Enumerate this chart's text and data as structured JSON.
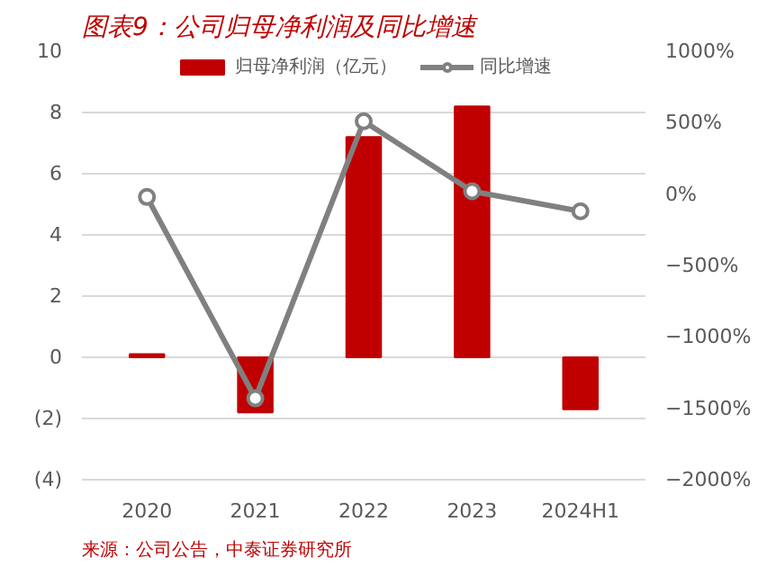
{
  "chart_data": {
    "type": "bar",
    "title": "图表9：公司归母净利润及同比增速",
    "categories": [
      "2020",
      "2021",
      "2022",
      "2023",
      "2024H1"
    ],
    "series": [
      {
        "name": "归母净利润（亿元）",
        "color": "#c00000",
        "values": [
          0.1,
          -1.8,
          7.2,
          8.2,
          -1.7
        ]
      },
      {
        "name": "同比增速",
        "color": "#808080",
        "type": "line",
        "axis": "y2",
        "marker": "circle",
        "values": [
          -20,
          -1430,
          510,
          20,
          -120
        ]
      }
    ],
    "ylim": [
      -4,
      10
    ],
    "yticks": [
      {
        "value": -4,
        "label": "(4)"
      },
      {
        "value": -2,
        "label": "(2)"
      },
      0,
      2,
      4,
      6,
      8,
      10
    ],
    "y2lim": [
      -2000,
      1000
    ],
    "y2ticks": [
      {
        "value": -2000,
        "label": "−2000%"
      },
      {
        "value": -1500,
        "label": "−1500%"
      },
      {
        "value": -1000,
        "label": "−1000%"
      },
      {
        "value": -500,
        "label": "−500%"
      },
      {
        "value": 0,
        "label": "0%"
      },
      {
        "value": 500,
        "label": "500%"
      },
      {
        "value": 1000,
        "label": "1000%"
      }
    ],
    "grid": "y",
    "legend": "top",
    "annotations": [
      "来源：公司公告，中泰证券研究所"
    ]
  }
}
